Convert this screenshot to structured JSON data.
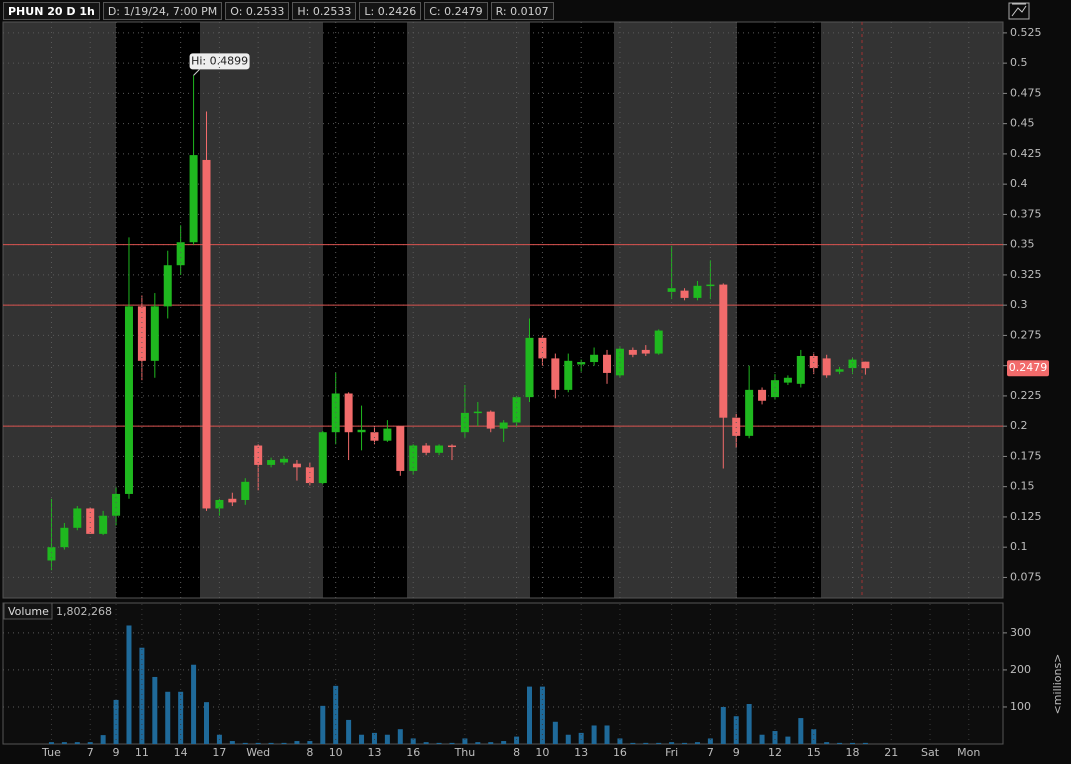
{
  "chart_data": [
    {
      "type": "candlestick",
      "title": "PHUN 20 D 1h",
      "info": [
        "D: 1/19/24, 7:00 PM",
        "O: 0.2533",
        "H: 0.2533",
        "L: 0.2426",
        "C: 0.2479",
        "R: 0.0107"
      ],
      "annotation": "Hi: 0.4899",
      "categories": [
        "Tue",
        null,
        null,
        "7",
        null,
        "9",
        null,
        "11",
        null,
        null,
        "14",
        null,
        null,
        "17",
        null,
        null,
        "Wed",
        null,
        null,
        null,
        "8",
        null,
        "10",
        null,
        null,
        "13",
        null,
        null,
        "16",
        null,
        null,
        null,
        "Thu",
        null,
        null,
        null,
        "8",
        null,
        "10",
        null,
        null,
        "13",
        null,
        null,
        "16",
        null,
        null,
        null,
        "Fri",
        null,
        null,
        "7",
        null,
        "9",
        null,
        null,
        "12",
        null,
        null,
        "15",
        null,
        null,
        "18",
        null,
        null,
        "21",
        null,
        null,
        "Sat",
        null,
        null,
        "Mon",
        null,
        null
      ],
      "open": [
        0.089,
        0.1,
        0.116,
        0.132,
        0.111,
        0.126,
        0.144,
        0.299,
        0.254,
        0.299,
        0.333,
        0.352,
        0.42,
        0.132,
        0.14,
        0.139,
        0.184,
        0.168,
        0.17,
        0.169,
        0.166,
        0.153,
        0.195,
        0.227,
        0.195,
        0.195,
        0.188,
        0.2,
        0.163,
        0.184,
        0.178,
        0.184,
        0.195,
        0.211,
        0.212,
        0.198,
        0.203,
        0.224,
        0.273,
        0.256,
        0.23,
        0.251,
        0.253,
        0.259,
        0.242,
        0.263,
        0.263,
        0.26,
        0.311,
        0.312,
        0.306,
        0.316,
        0.317,
        0.207,
        0.192,
        0.23,
        0.224,
        0.236,
        0.235,
        0.258,
        0.256,
        0.245,
        0.248,
        0.2533,
        null,
        null,
        null,
        null,
        null,
        null,
        null,
        null,
        null,
        null
      ],
      "high": [
        0.14,
        0.12,
        0.134,
        0.133,
        0.13,
        0.15,
        0.356,
        0.308,
        0.31,
        0.345,
        0.366,
        0.4899,
        0.46,
        0.14,
        0.145,
        0.157,
        0.185,
        0.174,
        0.175,
        0.172,
        0.17,
        0.196,
        0.244,
        0.228,
        0.217,
        0.2,
        0.205,
        0.2,
        0.185,
        0.186,
        0.185,
        0.185,
        0.234,
        0.22,
        0.213,
        0.205,
        0.225,
        0.289,
        0.275,
        0.26,
        0.26,
        0.255,
        0.265,
        0.263,
        0.266,
        0.265,
        0.267,
        0.28,
        0.349,
        0.314,
        0.32,
        0.337,
        0.318,
        0.21,
        0.25,
        0.232,
        0.243,
        0.242,
        0.263,
        0.26,
        0.259,
        0.249,
        0.257,
        0.2533,
        null,
        null,
        null,
        null,
        null,
        null,
        null,
        null,
        null,
        null
      ],
      "low": [
        0.081,
        0.098,
        0.114,
        0.111,
        0.11,
        0.118,
        0.14,
        0.238,
        0.24,
        0.289,
        0.325,
        0.35,
        0.13,
        0.126,
        0.134,
        0.135,
        0.147,
        0.166,
        0.168,
        0.155,
        0.151,
        0.152,
        0.185,
        0.172,
        0.18,
        0.185,
        0.187,
        0.159,
        0.16,
        0.176,
        0.176,
        0.172,
        0.19,
        0.2,
        0.195,
        0.187,
        0.2,
        0.22,
        0.25,
        0.223,
        0.228,
        0.245,
        0.25,
        0.235,
        0.24,
        0.257,
        0.258,
        0.259,
        0.305,
        0.304,
        0.304,
        0.305,
        0.165,
        0.182,
        0.19,
        0.218,
        0.222,
        0.234,
        0.232,
        0.243,
        0.24,
        0.243,
        0.243,
        0.2426,
        null,
        null,
        null,
        null,
        null,
        null,
        null,
        null,
        null,
        null
      ],
      "close": [
        0.1,
        0.116,
        0.132,
        0.111,
        0.126,
        0.144,
        0.299,
        0.254,
        0.299,
        0.333,
        0.352,
        0.424,
        0.132,
        0.139,
        0.137,
        0.154,
        0.168,
        0.172,
        0.173,
        0.166,
        0.153,
        0.195,
        0.227,
        0.195,
        0.197,
        0.188,
        0.198,
        0.163,
        0.184,
        0.178,
        0.184,
        0.183,
        0.211,
        0.212,
        0.198,
        0.203,
        0.224,
        0.273,
        0.256,
        0.23,
        0.254,
        0.253,
        0.259,
        0.244,
        0.264,
        0.259,
        0.26,
        0.279,
        0.314,
        0.306,
        0.316,
        0.317,
        0.207,
        0.192,
        0.23,
        0.221,
        0.238,
        0.24,
        0.258,
        0.248,
        0.242,
        0.247,
        0.255,
        0.2479,
        null,
        null,
        null,
        null,
        null,
        null,
        null,
        null,
        null,
        null
      ],
      "up_color": "#1fb81f",
      "down_color": "#f26b6b",
      "levels": [
        0.35,
        0.3,
        0.2
      ],
      "level_color": "#d9534f",
      "last_price": {
        "value": 0.2479,
        "label": "0.2479"
      },
      "ylim": [
        0.058,
        0.534
      ],
      "yticks": [
        0.075,
        0.1,
        0.125,
        0.15,
        0.175,
        0.2,
        0.225,
        0.25,
        0.275,
        0.3,
        0.325,
        0.35,
        0.375,
        0.4,
        0.425,
        0.45,
        0.475,
        0.5,
        0.525
      ],
      "grid": true
    },
    {
      "type": "bar",
      "title": "Volume",
      "subtitle": "1,802,268",
      "y_label": "<millions>",
      "values": [
        5,
        5,
        5,
        5,
        24,
        119,
        320,
        260,
        181,
        141,
        141,
        214,
        113,
        25,
        8,
        3,
        3,
        3,
        3,
        8,
        8,
        103,
        157,
        65,
        25,
        30,
        25,
        40,
        15,
        5,
        3,
        3,
        15,
        5,
        5,
        8,
        20,
        155,
        155,
        60,
        25,
        30,
        50,
        50,
        15,
        3,
        3,
        3,
        5,
        3,
        5,
        15,
        100,
        75,
        108,
        25,
        35,
        20,
        70,
        40,
        5,
        3,
        3,
        3,
        null,
        null,
        null,
        null,
        null,
        null,
        null,
        null,
        null,
        null
      ],
      "color": "#1f6a9a",
      "ylim": [
        0,
        378
      ],
      "yticks": [
        100,
        200,
        300
      ],
      "grid": true
    }
  ]
}
